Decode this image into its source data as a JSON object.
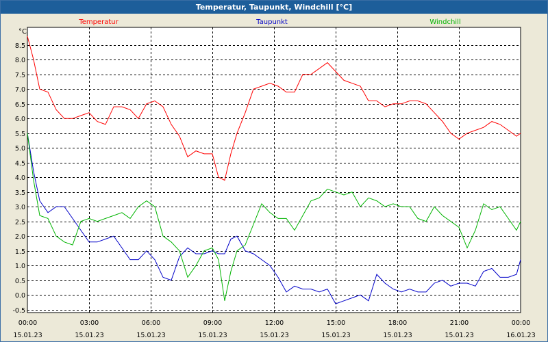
{
  "window": {
    "title": "Temperatur, Taupunkt, Windchill [°C]"
  },
  "chart_data": {
    "type": "line",
    "title": "Temperatur, Taupunkt, Windchill [°C]",
    "ylabel": "°C",
    "ylim": [
      -0.6,
      9.1
    ],
    "yticks": [
      8.5,
      8.0,
      7.5,
      7.0,
      6.5,
      6.0,
      5.5,
      5.0,
      4.5,
      4.0,
      3.5,
      3.0,
      2.5,
      2.0,
      1.5,
      1.0,
      0.5,
      0.0,
      -0.5
    ],
    "ytick_labels": [
      "8.5",
      "8.0",
      "7.5",
      "7.0",
      "6.5",
      "6.0",
      "5.5",
      "5.0",
      "4.5",
      "4.0",
      "3.5",
      "3.0",
      "2.5",
      "2.0",
      "1.5",
      "1.0",
      "0.5",
      "0.0",
      "-0.5"
    ],
    "xlim": [
      0,
      24
    ],
    "xticks": [
      0,
      3,
      6,
      9,
      12,
      15,
      18,
      21,
      24
    ],
    "xtick_labels": [
      {
        "time": "00:00",
        "date": "15.01.23"
      },
      {
        "time": "03:00",
        "date": "15.01.23"
      },
      {
        "time": "06:00",
        "date": "15.01.23"
      },
      {
        "time": "09:00",
        "date": "15.01.23"
      },
      {
        "time": "12:00",
        "date": "15.01.23"
      },
      {
        "time": "15:00",
        "date": "15.01.23"
      },
      {
        "time": "18:00",
        "date": "15.01.23"
      },
      {
        "time": "21:00",
        "date": "15.01.23"
      },
      {
        "time": "00:00",
        "date": "16.01.23"
      }
    ],
    "grid": true,
    "legend_position": "top",
    "series": [
      {
        "name": "Temperatur",
        "color": "#ff0000",
        "x": [
          0,
          0.3,
          0.6,
          1.0,
          1.4,
          1.8,
          2.2,
          2.6,
          3.0,
          3.4,
          3.8,
          4.2,
          4.6,
          5.0,
          5.4,
          5.8,
          6.2,
          6.6,
          7.0,
          7.4,
          7.8,
          8.2,
          8.6,
          9.0,
          9.3,
          9.6,
          9.9,
          10.2,
          10.6,
          11.0,
          11.4,
          11.8,
          12.2,
          12.6,
          13.0,
          13.4,
          13.8,
          14.2,
          14.6,
          15.0,
          15.4,
          15.8,
          16.2,
          16.6,
          17.0,
          17.4,
          17.8,
          18.2,
          18.6,
          19.0,
          19.4,
          19.8,
          20.2,
          20.6,
          21.0,
          21.4,
          21.8,
          22.2,
          22.6,
          23.0,
          23.4,
          23.8,
          24.0
        ],
        "y": [
          8.8,
          8.0,
          7.0,
          6.9,
          6.3,
          6.0,
          6.0,
          6.1,
          6.2,
          5.9,
          5.8,
          6.4,
          6.4,
          6.3,
          6.0,
          6.5,
          6.6,
          6.4,
          5.8,
          5.4,
          4.7,
          4.9,
          4.8,
          4.8,
          4.0,
          3.9,
          4.8,
          5.5,
          6.2,
          7.0,
          7.1,
          7.2,
          7.1,
          6.9,
          6.9,
          7.5,
          7.5,
          7.7,
          7.9,
          7.6,
          7.3,
          7.2,
          7.1,
          6.6,
          6.6,
          6.4,
          6.5,
          6.5,
          6.6,
          6.6,
          6.5,
          6.2,
          5.9,
          5.5,
          5.3,
          5.5,
          5.6,
          5.7,
          5.9,
          5.8,
          5.6,
          5.4,
          5.5
        ]
      },
      {
        "name": "Taupunkt",
        "color": "#0000c8",
        "x": [
          0,
          0.3,
          0.6,
          1.0,
          1.4,
          1.8,
          2.2,
          2.6,
          3.0,
          3.4,
          3.8,
          4.2,
          4.6,
          5.0,
          5.4,
          5.8,
          6.2,
          6.6,
          7.0,
          7.4,
          7.8,
          8.2,
          8.6,
          9.0,
          9.3,
          9.6,
          9.9,
          10.2,
          10.6,
          11.0,
          11.4,
          11.8,
          12.2,
          12.6,
          13.0,
          13.4,
          13.8,
          14.2,
          14.6,
          15.0,
          15.4,
          15.8,
          16.2,
          16.6,
          17.0,
          17.4,
          17.8,
          18.2,
          18.6,
          19.0,
          19.4,
          19.8,
          20.2,
          20.6,
          21.0,
          21.4,
          21.8,
          22.2,
          22.6,
          23.0,
          23.4,
          23.8,
          24.0
        ],
        "y": [
          5.5,
          4.2,
          3.2,
          2.8,
          3.0,
          3.0,
          2.6,
          2.2,
          1.8,
          1.8,
          1.9,
          2.0,
          1.6,
          1.2,
          1.2,
          1.5,
          1.2,
          0.6,
          0.5,
          1.3,
          1.6,
          1.4,
          1.4,
          1.5,
          1.4,
          1.4,
          1.9,
          2.0,
          1.5,
          1.4,
          1.2,
          1.0,
          0.6,
          0.1,
          0.3,
          0.2,
          0.2,
          0.1,
          0.2,
          -0.3,
          -0.2,
          -0.1,
          0.0,
          -0.2,
          0.7,
          0.4,
          0.2,
          0.1,
          0.2,
          0.1,
          0.1,
          0.4,
          0.5,
          0.3,
          0.4,
          0.4,
          0.3,
          0.8,
          0.9,
          0.6,
          0.6,
          0.7,
          1.2
        ]
      },
      {
        "name": "Windchill",
        "color": "#00b400",
        "x": [
          0,
          0.3,
          0.6,
          1.0,
          1.4,
          1.8,
          2.2,
          2.6,
          3.0,
          3.4,
          3.8,
          4.2,
          4.6,
          5.0,
          5.4,
          5.8,
          6.2,
          6.6,
          7.0,
          7.4,
          7.8,
          8.2,
          8.6,
          9.0,
          9.3,
          9.6,
          9.9,
          10.2,
          10.6,
          11.0,
          11.4,
          11.8,
          12.2,
          12.6,
          13.0,
          13.4,
          13.8,
          14.2,
          14.6,
          15.0,
          15.4,
          15.8,
          16.2,
          16.6,
          17.0,
          17.4,
          17.8,
          18.2,
          18.6,
          19.0,
          19.4,
          19.8,
          20.2,
          20.6,
          21.0,
          21.4,
          21.8,
          22.2,
          22.6,
          23.0,
          23.4,
          23.8,
          24.0
        ],
        "y": [
          5.5,
          3.9,
          2.7,
          2.6,
          2.0,
          1.8,
          1.7,
          2.5,
          2.6,
          2.5,
          2.6,
          2.7,
          2.8,
          2.6,
          3.0,
          3.2,
          3.0,
          2.0,
          1.8,
          1.5,
          0.6,
          1.0,
          1.5,
          1.6,
          1.2,
          -0.2,
          0.8,
          1.5,
          1.7,
          2.4,
          3.1,
          2.8,
          2.6,
          2.6,
          2.2,
          2.7,
          3.2,
          3.3,
          3.6,
          3.5,
          3.4,
          3.5,
          3.0,
          3.3,
          3.2,
          3.0,
          3.1,
          3.0,
          3.0,
          2.6,
          2.5,
          3.0,
          2.7,
          2.5,
          2.3,
          1.6,
          2.2,
          3.1,
          2.9,
          3.0,
          2.6,
          2.2,
          2.5
        ]
      }
    ]
  }
}
